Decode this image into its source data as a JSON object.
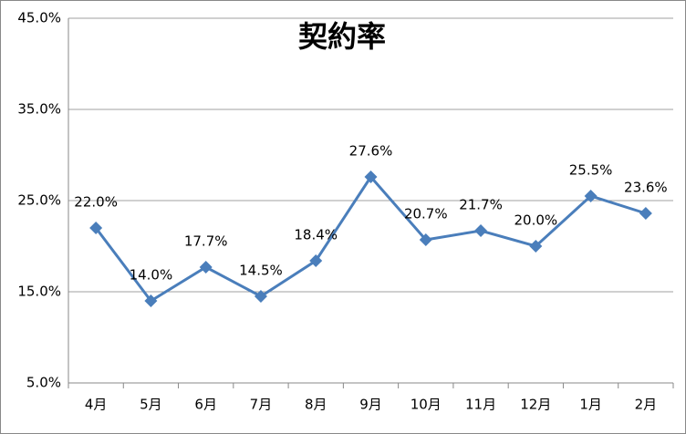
{
  "chart_data": {
    "type": "line",
    "title": "契約率",
    "categories": [
      "4月",
      "5月",
      "6月",
      "7月",
      "8月",
      "9月",
      "10月",
      "11月",
      "12月",
      "1月",
      "2月"
    ],
    "series": [
      {
        "name": "契約率",
        "color": "#4a7ebb",
        "values": [
          22.0,
          14.0,
          17.7,
          14.5,
          18.4,
          27.6,
          20.7,
          21.7,
          20.0,
          25.5,
          23.6
        ],
        "value_labels": [
          "22.0%",
          "14.0%",
          "17.7%",
          "14.5%",
          "18.4%",
          "27.6%",
          "20.7%",
          "21.7%",
          "20.0%",
          "25.5%",
          "23.6%"
        ]
      }
    ],
    "ylim": [
      5,
      45
    ],
    "yticks": [
      {
        "value": 5,
        "label": "5.0%"
      },
      {
        "value": 15,
        "label": "15.0%"
      },
      {
        "value": 25,
        "label": "25.0%"
      },
      {
        "value": 35,
        "label": "35.0%"
      },
      {
        "value": 45,
        "label": "45.0%"
      }
    ],
    "grid": true
  }
}
